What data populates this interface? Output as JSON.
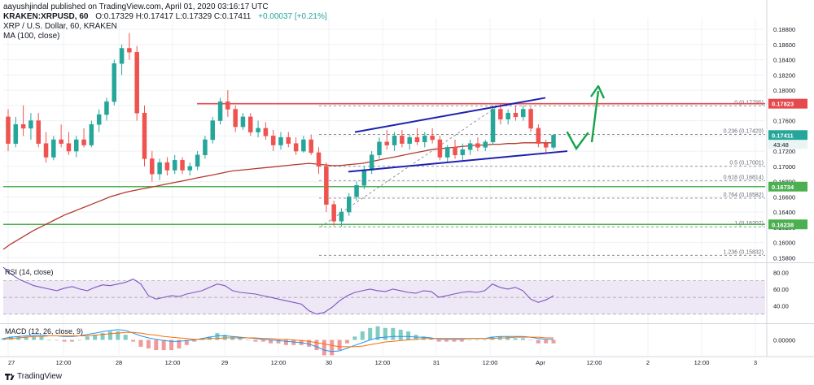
{
  "header": {
    "published": "aayushjindal published on TradingView.com, April 01, 2020 03:16:17 UTC",
    "pair": "KRAKEN:XRPUSD, 60",
    "ohlc": "O:0.17329 H:0.17417 L:0.17329 C:0.17411",
    "change": "+0.00037 [+0.21%]",
    "title": "XRP / U.S. Dollar, 60, KRAKEN",
    "ma_label": "MA (100, close)"
  },
  "footer": {
    "brand": "TradingView"
  },
  "colors": {
    "bull": "#26a69a",
    "bear": "#ef5350",
    "ma": "#b5382c",
    "resistance": "#e5494d",
    "support": "#4caf50",
    "channel": "#1d22b0",
    "fib": "#7a7a7a",
    "arrow": "#16a34a",
    "rsi": "#7e57c2"
  },
  "chart_data": [
    {
      "type": "candlestick",
      "title": "XRP / U.S. Dollar, 60, KRAKEN",
      "ylim": [
        0.1575,
        0.1895
      ],
      "y_ticks": [
        "0.18800",
        "0.18600",
        "0.18400",
        "0.18200",
        "0.18000",
        "0.17800",
        "0.17600",
        "0.17400",
        "0.17200",
        "0.17000",
        "0.16800",
        "0.16600",
        "0.16400",
        "0.16200",
        "0.16000",
        "0.15800"
      ],
      "x_ticks": [
        "27",
        "12:00",
        "28",
        "12:00",
        "29",
        "12:00",
        "30",
        "12:00",
        "31",
        "12:00",
        "Apr",
        "12:00",
        "2",
        "12:00",
        "3"
      ],
      "price_label": "0.17411",
      "countdown": "43:48",
      "candles": [
        [
          0.1765,
          0.1775,
          0.172,
          0.173
        ],
        [
          0.173,
          0.1765,
          0.1725,
          0.1755
        ],
        [
          0.1755,
          0.178,
          0.174,
          0.175
        ],
        [
          0.175,
          0.177,
          0.1735,
          0.176
        ],
        [
          0.176,
          0.177,
          0.1725,
          0.173
        ],
        [
          0.173,
          0.1745,
          0.1705,
          0.1712
        ],
        [
          0.1712,
          0.174,
          0.1708,
          0.1735
        ],
        [
          0.1735,
          0.1755,
          0.1725,
          0.173
        ],
        [
          0.173,
          0.1745,
          0.1715,
          0.172
        ],
        [
          0.172,
          0.174,
          0.1712,
          0.1735
        ],
        [
          0.1735,
          0.175,
          0.1725,
          0.1728
        ],
        [
          0.1728,
          0.176,
          0.1725,
          0.1755
        ],
        [
          0.1755,
          0.1775,
          0.1745,
          0.1768
        ],
        [
          0.1768,
          0.179,
          0.176,
          0.1785
        ],
        [
          0.1785,
          0.184,
          0.178,
          0.1835
        ],
        [
          0.1835,
          0.186,
          0.182,
          0.1855
        ],
        [
          0.1855,
          0.1875,
          0.184,
          0.185
        ],
        [
          0.185,
          0.1858,
          0.176,
          0.177
        ],
        [
          0.177,
          0.178,
          0.17,
          0.171
        ],
        [
          0.171,
          0.172,
          0.168,
          0.169
        ],
        [
          0.169,
          0.171,
          0.1682,
          0.1705
        ],
        [
          0.1705,
          0.1712,
          0.1688,
          0.1695
        ],
        [
          0.1695,
          0.1715,
          0.169,
          0.1708
        ],
        [
          0.1708,
          0.1712,
          0.169,
          0.1695
        ],
        [
          0.1695,
          0.1705,
          0.1688,
          0.17
        ],
        [
          0.17,
          0.172,
          0.1695,
          0.1715
        ],
        [
          0.1715,
          0.174,
          0.171,
          0.1735
        ],
        [
          0.1735,
          0.1765,
          0.173,
          0.176
        ],
        [
          0.176,
          0.179,
          0.1755,
          0.1785
        ],
        [
          0.1785,
          0.18,
          0.1765,
          0.1775
        ],
        [
          0.1775,
          0.178,
          0.1745,
          0.1752
        ],
        [
          0.1752,
          0.177,
          0.1748,
          0.1765
        ],
        [
          0.1765,
          0.177,
          0.174,
          0.1745
        ],
        [
          0.1745,
          0.176,
          0.1738,
          0.175
        ],
        [
          0.175,
          0.1758,
          0.1735,
          0.174
        ],
        [
          0.174,
          0.1748,
          0.172,
          0.1728
        ],
        [
          0.1728,
          0.1745,
          0.1722,
          0.1738
        ],
        [
          0.1738,
          0.1745,
          0.1725,
          0.173
        ],
        [
          0.173,
          0.1738,
          0.1715,
          0.172
        ],
        [
          0.172,
          0.174,
          0.1718,
          0.1735
        ],
        [
          0.1735,
          0.1742,
          0.1715,
          0.1718
        ],
        [
          0.1718,
          0.1725,
          0.169,
          0.17
        ],
        [
          0.17,
          0.1705,
          0.164,
          0.165
        ],
        [
          0.165,
          0.1655,
          0.1622,
          0.1628
        ],
        [
          0.1628,
          0.1645,
          0.1621,
          0.164
        ],
        [
          0.164,
          0.1665,
          0.1635,
          0.166
        ],
        [
          0.166,
          0.168,
          0.1655,
          0.1675
        ],
        [
          0.1675,
          0.17,
          0.167,
          0.1695
        ],
        [
          0.1695,
          0.172,
          0.169,
          0.1715
        ],
        [
          0.1715,
          0.1738,
          0.171,
          0.1732
        ],
        [
          0.1732,
          0.1748,
          0.1722,
          0.1728
        ],
        [
          0.1728,
          0.1745,
          0.172,
          0.174
        ],
        [
          0.174,
          0.1748,
          0.1725,
          0.173
        ],
        [
          0.173,
          0.1742,
          0.1722,
          0.1738
        ],
        [
          0.1738,
          0.175,
          0.1728,
          0.1732
        ],
        [
          0.1732,
          0.1745,
          0.1725,
          0.174
        ],
        [
          0.174,
          0.175,
          0.173,
          0.1735
        ],
        [
          0.1735,
          0.174,
          0.1708,
          0.1712
        ],
        [
          0.1712,
          0.1728,
          0.1705,
          0.1725
        ],
        [
          0.1725,
          0.1735,
          0.171,
          0.1715
        ],
        [
          0.1715,
          0.173,
          0.1708,
          0.1722
        ],
        [
          0.1722,
          0.1735,
          0.1715,
          0.173
        ],
        [
          0.173,
          0.1738,
          0.172,
          0.1725
        ],
        [
          0.1725,
          0.1735,
          0.172,
          0.1732
        ],
        [
          0.1732,
          0.178,
          0.1728,
          0.1775
        ],
        [
          0.1775,
          0.1782,
          0.1755,
          0.1762
        ],
        [
          0.1762,
          0.1775,
          0.1755,
          0.177
        ],
        [
          0.177,
          0.178,
          0.176,
          0.1765
        ],
        [
          0.1765,
          0.178,
          0.176,
          0.1775
        ],
        [
          0.1775,
          0.1778,
          0.1745,
          0.175
        ],
        [
          0.175,
          0.1755,
          0.1725,
          0.173
        ],
        [
          0.173,
          0.1735,
          0.1718,
          0.1725
        ],
        [
          0.1725,
          0.1742,
          0.1722,
          0.1741
        ]
      ],
      "ma100": [
        0.1591,
        0.1598,
        0.1604,
        0.161,
        0.1616,
        0.1621,
        0.1626,
        0.1631,
        0.1636,
        0.164,
        0.1644,
        0.1648,
        0.1652,
        0.1656,
        0.166,
        0.1663,
        0.1666,
        0.1668,
        0.167,
        0.1672,
        0.1674,
        0.1676,
        0.1678,
        0.168,
        0.1682,
        0.1684,
        0.1686,
        0.1688,
        0.169,
        0.1692,
        0.1694,
        0.1695,
        0.1696,
        0.1697,
        0.1698,
        0.1699,
        0.17,
        0.1701,
        0.1702,
        0.1703,
        0.1704,
        0.1703,
        0.1702,
        0.1701,
        0.1701,
        0.1702,
        0.1703,
        0.1704,
        0.1706,
        0.1708,
        0.171,
        0.1712,
        0.1714,
        0.1716,
        0.1718,
        0.172,
        0.1722,
        0.1723,
        0.1724,
        0.1725,
        0.1726,
        0.1727,
        0.1728,
        0.1728,
        0.1729,
        0.1729,
        0.173,
        0.173,
        0.1731,
        0.1731,
        0.1731,
        0.1731,
        0.1731
      ],
      "levels": {
        "resistance": {
          "value": 0.17823,
          "label": "0.17823"
        },
        "support_1": {
          "value": 0.16734,
          "label": "0.16734"
        },
        "support_2": {
          "value": 0.16238,
          "label": "0.16238"
        }
      },
      "fib": [
        {
          "value": 0.17795,
          "label": "0 (0.17795)"
        },
        {
          "value": 0.1742,
          "label": "0.236 (0.17420)"
        },
        {
          "value": 0.17001,
          "label": "0.5 (0.17001)"
        },
        {
          "value": 0.16814,
          "label": "0.618 (0.16814)"
        },
        {
          "value": 0.16582,
          "label": "0.764 (0.16582)"
        },
        {
          "value": 0.16207,
          "label": "1 (0.16207)"
        },
        {
          "value": 0.15832,
          "label": "1.236 (0.15832)"
        }
      ],
      "channel": {
        "upper": [
          [
            0.1745,
            0.179
          ]
        ],
        "lower": [
          [
            0.1693,
            0.172
          ]
        ]
      }
    },
    {
      "type": "line",
      "title": "RSI (14, close)",
      "ylim": [
        20,
        90
      ],
      "y_ticks": [
        "80.00",
        "60.00",
        "40.00"
      ],
      "band": [
        30,
        70
      ],
      "values": [
        86,
        78,
        72,
        68,
        64,
        62,
        60,
        58,
        61,
        63,
        60,
        58,
        62,
        65,
        64,
        66,
        68,
        72,
        66,
        52,
        48,
        50,
        52,
        51,
        54,
        56,
        58,
        62,
        66,
        64,
        58,
        56,
        55,
        54,
        52,
        50,
        48,
        46,
        44,
        42,
        34,
        30,
        32,
        38,
        46,
        52,
        56,
        58,
        60,
        58,
        57,
        60,
        58,
        56,
        55,
        58,
        57,
        50,
        52,
        54,
        56,
        57,
        56,
        58,
        66,
        62,
        60,
        62,
        58,
        48,
        44,
        47,
        52
      ]
    },
    {
      "type": "line",
      "title": "MACD (12, 26, close, 9)",
      "ylim": [
        -0.0022,
        0.0022
      ],
      "y_ticks": [
        "0.00000"
      ],
      "macd": [
        0.0002,
        0.0004,
        0.0005,
        0.0006,
        0.0007,
        0.0007,
        0.0006,
        0.0006,
        0.0005,
        0.0005,
        0.0006,
        0.0008,
        0.001,
        0.0012,
        0.0014,
        0.0015,
        0.0014,
        0.001,
        0.0006,
        0.0003,
        0.0001,
        -0.0001,
        -0.0002,
        -0.0002,
        -0.0001,
        0.0,
        0.0002,
        0.0004,
        0.0006,
        0.0006,
        0.0005,
        0.0004,
        0.0003,
        0.0002,
        0.0001,
        0.0,
        -0.0001,
        -0.0002,
        -0.0003,
        -0.0004,
        -0.0006,
        -0.001,
        -0.0015,
        -0.0017,
        -0.0016,
        -0.0012,
        -0.0008,
        -0.0004,
        0.0,
        0.0003,
        0.0004,
        0.0005,
        0.0005,
        0.0005,
        0.0004,
        0.0004,
        0.0003,
        0.0001,
        0.0001,
        0.0001,
        0.0001,
        0.0002,
        0.0002,
        0.0002,
        0.0004,
        0.0005,
        0.0005,
        0.0005,
        0.0005,
        0.0004,
        0.0002,
        0.0001,
        0.0001
      ],
      "signal": [
        0.0001,
        0.0002,
        0.0003,
        0.0004,
        0.0005,
        0.0005,
        0.0006,
        0.0006,
        0.0006,
        0.0006,
        0.0006,
        0.0006,
        0.0007,
        0.0008,
        0.0009,
        0.001,
        0.0011,
        0.0011,
        0.001,
        0.0008,
        0.0007,
        0.0005,
        0.0004,
        0.0003,
        0.0002,
        0.0001,
        0.0001,
        0.0002,
        0.0002,
        0.0003,
        0.0003,
        0.0003,
        0.0003,
        0.0003,
        0.0002,
        0.0002,
        0.0001,
        0.0001,
        0.0,
        -0.0001,
        -0.0002,
        -0.0004,
        -0.0006,
        -0.0008,
        -0.001,
        -0.001,
        -0.001,
        -0.0009,
        -0.0007,
        -0.0005,
        -0.0003,
        -0.0002,
        -0.0001,
        0.0,
        0.0001,
        0.0002,
        0.0002,
        0.0002,
        0.0002,
        0.0002,
        0.0002,
        0.0002,
        0.0002,
        0.0002,
        0.0002,
        0.0003,
        0.0003,
        0.0004,
        0.0004,
        0.0004,
        0.0004,
        0.0003,
        0.0003
      ]
    }
  ]
}
